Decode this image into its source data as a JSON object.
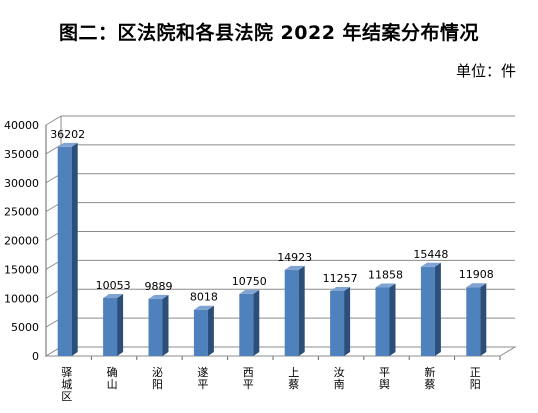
{
  "title": "图二：区法院和各县法院 2022 年结案分布情况",
  "unit": "单位：件",
  "chart_data": {
    "type": "bar",
    "title": "图二：区法院和各县法院 2022 年结案分布情况",
    "categories": [
      "驿城区",
      "确山",
      "泌阳",
      "遂平",
      "西平",
      "上蔡",
      "汝南",
      "平舆",
      "新蔡",
      "正阳"
    ],
    "values": [
      36202,
      10053,
      9889,
      8018,
      10750,
      14923,
      11257,
      11858,
      15448,
      11908
    ],
    "ylim": [
      0,
      40000
    ],
    "yticks": [
      0,
      5000,
      10000,
      15000,
      20000,
      25000,
      30000,
      35000,
      40000
    ],
    "xlabel": "",
    "ylabel": "",
    "grid": true,
    "legend": "none",
    "bar_color": "#4f81bd",
    "bar_side_color": "#2b4f78",
    "bar_top_color": "#7fa3d3"
  }
}
